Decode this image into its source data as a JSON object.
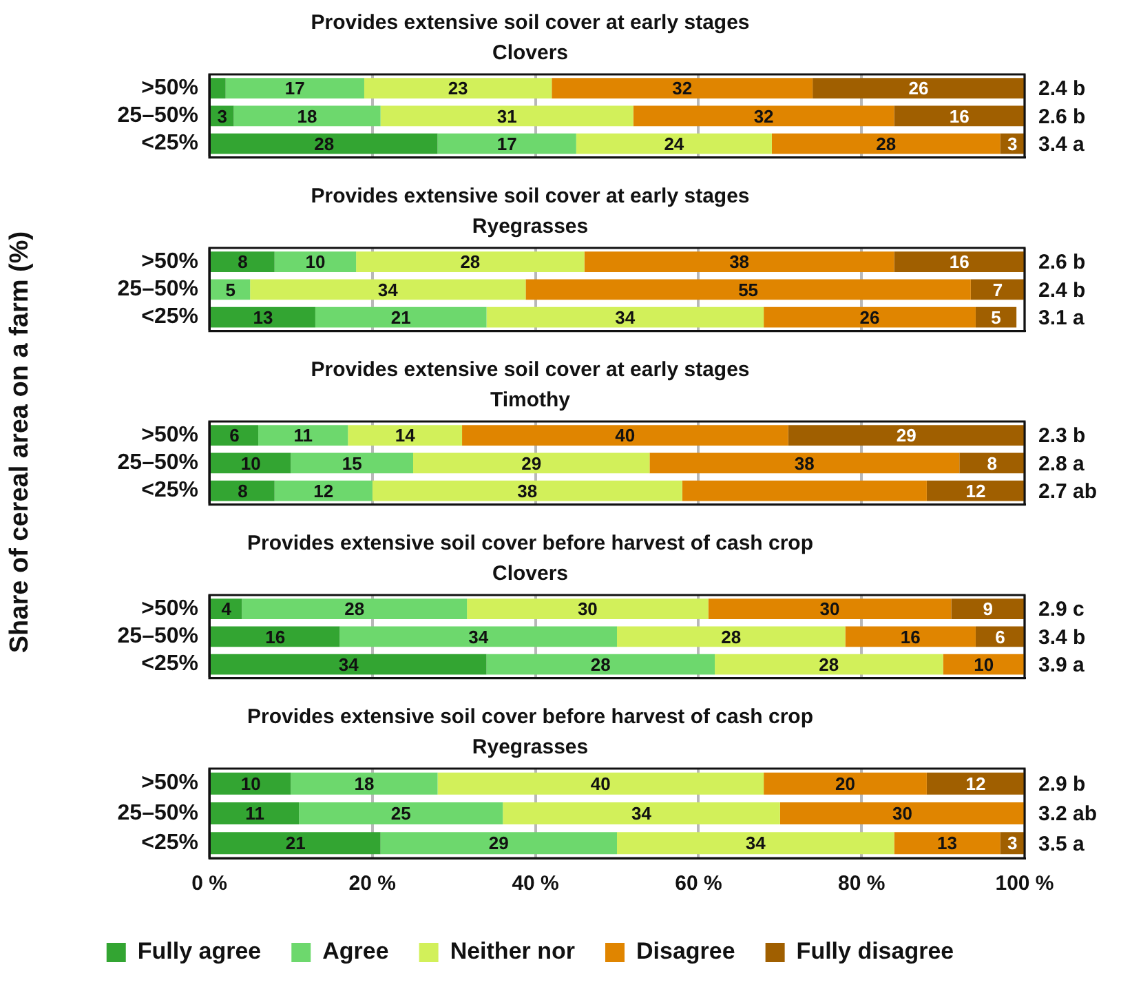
{
  "chart_data": [
    {
      "type": "bar",
      "orientation": "horizontal",
      "stacked": true,
      "title": "Provides extensive soil cover at early stages",
      "subtitle": "Clovers",
      "ylabel": "Share of cereal area on a farm (%)",
      "categories": [
        ">50%",
        "25–50%",
        "<25%"
      ],
      "xlim": [
        0,
        100
      ],
      "xticks": [
        {
          "value": 0,
          "label": null
        },
        {
          "value": 20,
          "label": null
        },
        {
          "value": 40,
          "label": null
        },
        {
          "value": 60,
          "label": null
        },
        {
          "value": 80,
          "label": null
        },
        {
          "value": 100,
          "label": null
        }
      ],
      "tick_labels": "y",
      "grid": "x",
      "legend": false,
      "series": [
        {
          "color": "#33a532",
          "values": [
            2,
            3,
            28
          ],
          "value_labels": [
            null,
            "3",
            "28"
          ]
        },
        {
          "color": "#6dd86d",
          "values": [
            17,
            18,
            17
          ],
          "value_labels": [
            "17",
            "18",
            "17"
          ]
        },
        {
          "color": "#d2f05a",
          "values": [
            23,
            31,
            24
          ],
          "value_labels": [
            "23",
            "31",
            "24"
          ]
        },
        {
          "color": "#e08500",
          "values": [
            32,
            32,
            28
          ],
          "value_labels": [
            "32",
            "32",
            "28"
          ]
        },
        {
          "color": "#a05f00",
          "values": [
            26,
            16,
            3
          ],
          "value_labels": [
            "26",
            "16",
            "3"
          ]
        }
      ],
      "annotations": [
        "2.4 b",
        "2.6 b",
        "3.4 a"
      ]
    },
    {
      "type": "bar",
      "orientation": "horizontal",
      "stacked": true,
      "title": "Provides extensive soil cover at early stages",
      "subtitle": "Ryegrasses",
      "categories": [
        ">50%",
        "25–50%",
        "<25%"
      ],
      "xlim": [
        0,
        100
      ],
      "xticks": [
        {
          "value": 0,
          "label": null
        },
        {
          "value": 20,
          "label": null
        },
        {
          "value": 40,
          "label": null
        },
        {
          "value": 60,
          "label": null
        },
        {
          "value": 80,
          "label": null
        },
        {
          "value": 100,
          "label": null
        }
      ],
      "tick_labels": "y",
      "grid": "x",
      "legend": false,
      "series": [
        {
          "color": "#33a532",
          "values": [
            8,
            0,
            13
          ],
          "value_labels": [
            "8",
            null,
            "13"
          ]
        },
        {
          "color": "#6dd86d",
          "values": [
            10,
            5,
            21
          ],
          "value_labels": [
            "10",
            "5",
            "21"
          ]
        },
        {
          "color": "#d2f05a",
          "values": [
            28,
            33.8,
            34
          ],
          "value_labels": [
            "28",
            "34",
            "34"
          ]
        },
        {
          "color": "#e08500",
          "values": [
            38,
            54.6,
            26
          ],
          "value_labels": [
            "38",
            "55",
            "26"
          ]
        },
        {
          "color": "#a05f00",
          "values": [
            16,
            6.6,
            5
          ],
          "value_labels": [
            "16",
            "7",
            "5"
          ]
        }
      ],
      "annotations": [
        "2.6 b",
        "2.4 b",
        "3.1 a"
      ]
    },
    {
      "type": "bar",
      "orientation": "horizontal",
      "stacked": true,
      "title": "Provides extensive soil cover at early stages",
      "subtitle": "Timothy",
      "categories": [
        ">50%",
        "25–50%",
        "<25%"
      ],
      "xlim": [
        0,
        100
      ],
      "xticks": [
        {
          "value": 0,
          "label": null
        },
        {
          "value": 20,
          "label": null
        },
        {
          "value": 40,
          "label": null
        },
        {
          "value": 60,
          "label": null
        },
        {
          "value": 80,
          "label": null
        },
        {
          "value": 100,
          "label": null
        }
      ],
      "tick_labels": "y",
      "grid": "x",
      "legend": false,
      "series": [
        {
          "color": "#33a532",
          "values": [
            6,
            10,
            8
          ],
          "value_labels": [
            "6",
            "10",
            "8"
          ]
        },
        {
          "color": "#6dd86d",
          "values": [
            11,
            15,
            12
          ],
          "value_labels": [
            "11",
            "15",
            "12"
          ]
        },
        {
          "color": "#d2f05a",
          "values": [
            14,
            29,
            38
          ],
          "value_labels": [
            "14",
            "29",
            "38"
          ]
        },
        {
          "color": "#e08500",
          "values": [
            40,
            38,
            30
          ],
          "value_labels": [
            "40",
            "38",
            null
          ]
        },
        {
          "color": "#a05f00",
          "values": [
            29,
            8,
            12
          ],
          "value_labels": [
            "29",
            "8",
            "12"
          ]
        }
      ],
      "annotations": [
        "2.3 b",
        "2.8 a",
        "2.7 ab"
      ]
    },
    {
      "type": "bar",
      "orientation": "horizontal",
      "stacked": true,
      "title": "Provides extensive soil cover before harvest of cash crop",
      "subtitle": "Clovers",
      "categories": [
        ">50%",
        "25–50%",
        "<25%"
      ],
      "xlim": [
        0,
        100
      ],
      "xticks": [
        {
          "value": 0,
          "label": null
        },
        {
          "value": 20,
          "label": null
        },
        {
          "value": 40,
          "label": null
        },
        {
          "value": 60,
          "label": null
        },
        {
          "value": 80,
          "label": null
        },
        {
          "value": 100,
          "label": null
        }
      ],
      "tick_labels": "y",
      "grid": "x",
      "legend": false,
      "series": [
        {
          "color": "#33a532",
          "values": [
            4,
            16,
            34
          ],
          "value_labels": [
            "4",
            "16",
            "34"
          ]
        },
        {
          "color": "#6dd86d",
          "values": [
            27.6,
            34,
            28
          ],
          "value_labels": [
            "28",
            "34",
            "28"
          ]
        },
        {
          "color": "#d2f05a",
          "values": [
            29.6,
            28,
            28
          ],
          "value_labels": [
            "30",
            "28",
            "28"
          ]
        },
        {
          "color": "#e08500",
          "values": [
            29.8,
            16,
            10
          ],
          "value_labels": [
            "30",
            "16",
            "10"
          ]
        },
        {
          "color": "#a05f00",
          "values": [
            9,
            6,
            0
          ],
          "value_labels": [
            "9",
            "6",
            null
          ]
        }
      ],
      "annotations": [
        "2.9 c",
        "3.4 b",
        "3.9 a"
      ]
    },
    {
      "type": "bar",
      "orientation": "horizontal",
      "stacked": true,
      "title": "Provides extensive soil cover before harvest of cash crop",
      "subtitle": "Ryegrasses",
      "categories": [
        ">50%",
        "25–50%",
        "<25%"
      ],
      "xlim": [
        0,
        100
      ],
      "xticks": [
        {
          "value": 0,
          "label": "0 %"
        },
        {
          "value": 20,
          "label": "20 %"
        },
        {
          "value": 40,
          "label": "40 %"
        },
        {
          "value": 60,
          "label": "60 %"
        },
        {
          "value": 80,
          "label": "80 %"
        },
        {
          "value": 100,
          "label": "100 %"
        }
      ],
      "grid": "x",
      "legend": "bottom",
      "series": [
        {
          "name": "Fully agree",
          "color": "#33a532",
          "values": [
            10,
            11,
            21
          ],
          "value_labels": [
            "10",
            "11",
            "21"
          ]
        },
        {
          "name": "Agree",
          "color": "#6dd86d",
          "values": [
            18,
            25,
            29
          ],
          "value_labels": [
            "18",
            "25",
            "29"
          ]
        },
        {
          "name": "Neither nor",
          "color": "#d2f05a",
          "values": [
            40,
            34,
            34
          ],
          "value_labels": [
            "40",
            "34",
            "34"
          ]
        },
        {
          "name": "Disagree",
          "color": "#e08500",
          "values": [
            20,
            30,
            13
          ],
          "value_labels": [
            "20",
            "30",
            "13"
          ]
        },
        {
          "name": "Fully disagree",
          "color": "#a05f00",
          "values": [
            12,
            0,
            3
          ],
          "value_labels": [
            "12",
            null,
            "3"
          ]
        }
      ],
      "annotations": [
        "2.9 b",
        "3.2 ab",
        "3.5 a"
      ]
    }
  ]
}
